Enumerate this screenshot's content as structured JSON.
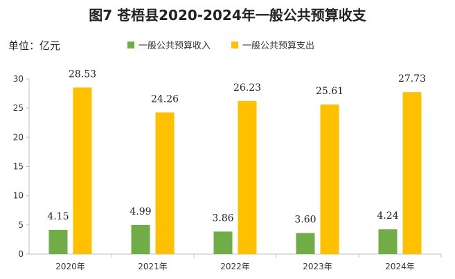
{
  "chart_data": {
    "type": "bar",
    "title": "图7  苍梧县2020-2024年一般公共预算收支",
    "unit_label": "单位：亿元",
    "categories": [
      "2020年",
      "2021年",
      "2022年",
      "2023年",
      "2024年"
    ],
    "series": [
      {
        "name": "一般公共预算收入",
        "color": "#70AD47",
        "values": [
          4.15,
          4.99,
          3.86,
          3.6,
          4.24
        ],
        "labels": [
          "4.15",
          "4.99",
          "3.86",
          "3.60",
          "4.24"
        ]
      },
      {
        "name": "一般公共预算支出",
        "color": "#FFC000",
        "values": [
          28.53,
          24.26,
          26.23,
          25.61,
          27.73
        ],
        "labels": [
          "28.53",
          "24.26",
          "26.23",
          "25.61",
          "27.73"
        ]
      }
    ],
    "ylim": [
      0,
      30
    ],
    "yticks": [
      "0",
      "5",
      "10",
      "15",
      "20",
      "25",
      "30"
    ],
    "legend_position": "top",
    "grid": false
  }
}
